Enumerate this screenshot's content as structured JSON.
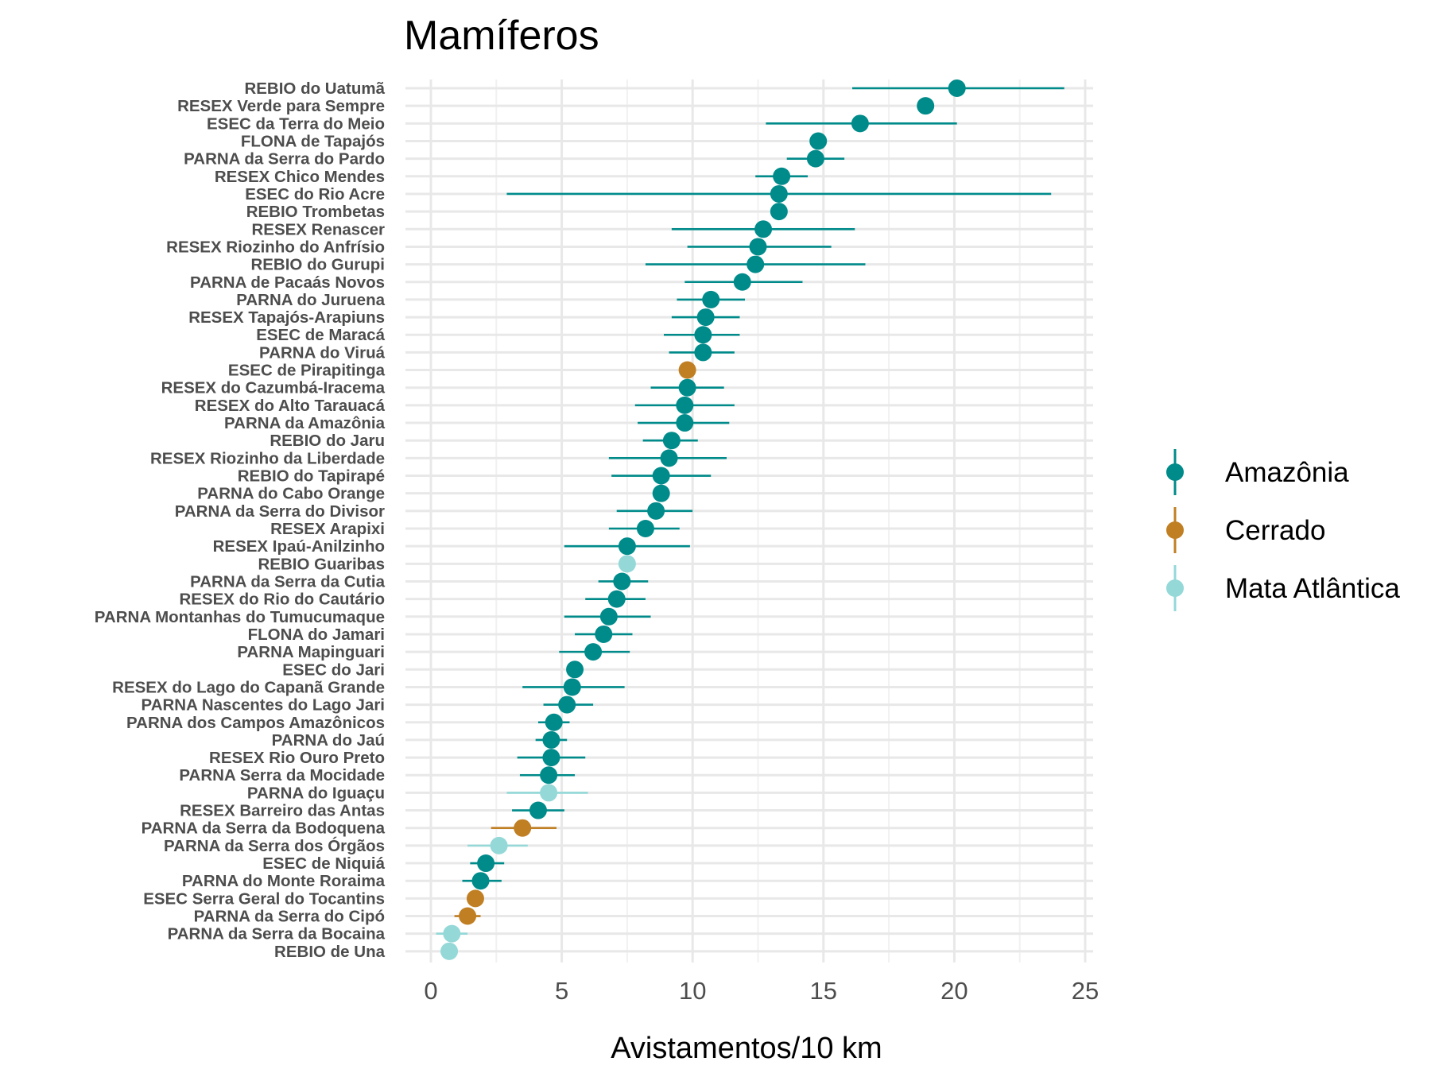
{
  "chart_data": {
    "type": "scatter",
    "subtype": "dot-with-error-bars",
    "title": "Mamíferos",
    "xlabel": "Avistamentos/10 km",
    "ylabel": "",
    "xlim": [
      0,
      25
    ],
    "xticks": [
      0,
      5,
      10,
      15,
      20,
      25
    ],
    "grid": true,
    "legend": {
      "position": "right",
      "entries": [
        {
          "name": "Amazônia",
          "color": "#008b8b"
        },
        {
          "name": "Cerrado",
          "color": "#c07f23"
        },
        {
          "name": "Mata Atlântica",
          "color": "#94d8d8"
        }
      ]
    },
    "points": [
      {
        "label": "REBIO do Uatumã",
        "biome": "Amazônia",
        "value": 20.1,
        "lower": 16.1,
        "upper": 24.2
      },
      {
        "label": "RESEX Verde para Sempre",
        "biome": "Amazônia",
        "value": 18.9,
        "lower": 18.9,
        "upper": 18.9
      },
      {
        "label": "ESEC da Terra do Meio",
        "biome": "Amazônia",
        "value": 16.4,
        "lower": 12.8,
        "upper": 20.1
      },
      {
        "label": "FLONA de Tapajós",
        "biome": "Amazônia",
        "value": 14.8,
        "lower": 14.8,
        "upper": 14.8
      },
      {
        "label": "PARNA da Serra do Pardo",
        "biome": "Amazônia",
        "value": 14.7,
        "lower": 13.6,
        "upper": 15.8
      },
      {
        "label": "RESEX Chico Mendes",
        "biome": "Amazônia",
        "value": 13.4,
        "lower": 12.4,
        "upper": 14.4
      },
      {
        "label": "ESEC do Rio Acre",
        "biome": "Amazônia",
        "value": 13.3,
        "lower": 2.9,
        "upper": 23.7
      },
      {
        "label": "REBIO Trombetas",
        "biome": "Amazônia",
        "value": 13.3,
        "lower": 13.3,
        "upper": 13.3
      },
      {
        "label": "RESEX Renascer",
        "biome": "Amazônia",
        "value": 12.7,
        "lower": 9.2,
        "upper": 16.2
      },
      {
        "label": "RESEX Riozinho do Anfrísio",
        "biome": "Amazônia",
        "value": 12.5,
        "lower": 9.8,
        "upper": 15.3
      },
      {
        "label": "REBIO do Gurupi",
        "biome": "Amazônia",
        "value": 12.4,
        "lower": 8.2,
        "upper": 16.6
      },
      {
        "label": "PARNA de Pacaás Novos",
        "biome": "Amazônia",
        "value": 11.9,
        "lower": 9.7,
        "upper": 14.2
      },
      {
        "label": "PARNA do Juruena",
        "biome": "Amazônia",
        "value": 10.7,
        "lower": 9.4,
        "upper": 12.0
      },
      {
        "label": "RESEX Tapajós-Arapiuns",
        "biome": "Amazônia",
        "value": 10.5,
        "lower": 9.2,
        "upper": 11.8
      },
      {
        "label": "ESEC de Maracá",
        "biome": "Amazônia",
        "value": 10.4,
        "lower": 8.9,
        "upper": 11.8
      },
      {
        "label": "PARNA do Viruá",
        "biome": "Amazônia",
        "value": 10.4,
        "lower": 9.1,
        "upper": 11.6
      },
      {
        "label": "ESEC de Pirapitinga",
        "biome": "Cerrado",
        "value": 9.8,
        "lower": 9.8,
        "upper": 9.8
      },
      {
        "label": "RESEX do Cazumbá-Iracema",
        "biome": "Amazônia",
        "value": 9.8,
        "lower": 8.4,
        "upper": 11.2
      },
      {
        "label": "RESEX do Alto Tarauacá",
        "biome": "Amazônia",
        "value": 9.7,
        "lower": 7.8,
        "upper": 11.6
      },
      {
        "label": "PARNA da Amazônia",
        "biome": "Amazônia",
        "value": 9.7,
        "lower": 7.9,
        "upper": 11.4
      },
      {
        "label": "REBIO do Jaru",
        "biome": "Amazônia",
        "value": 9.2,
        "lower": 8.1,
        "upper": 10.2
      },
      {
        "label": "RESEX Riozinho da Liberdade",
        "biome": "Amazônia",
        "value": 9.1,
        "lower": 6.8,
        "upper": 11.3
      },
      {
        "label": "REBIO do Tapirapé",
        "biome": "Amazônia",
        "value": 8.8,
        "lower": 6.9,
        "upper": 10.7
      },
      {
        "label": "PARNA do Cabo Orange",
        "biome": "Amazônia",
        "value": 8.8,
        "lower": 8.8,
        "upper": 8.8
      },
      {
        "label": "PARNA da Serra do Divisor",
        "biome": "Amazônia",
        "value": 8.6,
        "lower": 7.1,
        "upper": 10.0
      },
      {
        "label": "RESEX Arapixi",
        "biome": "Amazônia",
        "value": 8.2,
        "lower": 6.8,
        "upper": 9.5
      },
      {
        "label": "RESEX Ipaú-Anilzinho",
        "biome": "Amazônia",
        "value": 7.5,
        "lower": 5.1,
        "upper": 9.9
      },
      {
        "label": "REBIO Guaribas",
        "biome": "Mata Atlântica",
        "value": 7.5,
        "lower": 7.5,
        "upper": 7.5
      },
      {
        "label": "PARNA da Serra da Cutia",
        "biome": "Amazônia",
        "value": 7.3,
        "lower": 6.4,
        "upper": 8.3
      },
      {
        "label": "RESEX do Rio do Cautário",
        "biome": "Amazônia",
        "value": 7.1,
        "lower": 5.9,
        "upper": 8.2
      },
      {
        "label": "PARNA Montanhas do Tumucumaque",
        "biome": "Amazônia",
        "value": 6.8,
        "lower": 5.1,
        "upper": 8.4
      },
      {
        "label": "FLONA do Jamari",
        "biome": "Amazônia",
        "value": 6.6,
        "lower": 5.5,
        "upper": 7.7
      },
      {
        "label": "PARNA Mapinguari",
        "biome": "Amazônia",
        "value": 6.2,
        "lower": 4.9,
        "upper": 7.6
      },
      {
        "label": "ESEC do Jari",
        "biome": "Amazônia",
        "value": 5.5,
        "lower": 5.5,
        "upper": 5.5
      },
      {
        "label": "RESEX do Lago do Capanã Grande",
        "biome": "Amazônia",
        "value": 5.4,
        "lower": 3.5,
        "upper": 7.4
      },
      {
        "label": "PARNA Nascentes do Lago Jari",
        "biome": "Amazônia",
        "value": 5.2,
        "lower": 4.3,
        "upper": 6.2
      },
      {
        "label": "PARNA dos Campos Amazônicos",
        "biome": "Amazônia",
        "value": 4.7,
        "lower": 4.1,
        "upper": 5.3
      },
      {
        "label": "PARNA do Jaú",
        "biome": "Amazônia",
        "value": 4.6,
        "lower": 4.0,
        "upper": 5.2
      },
      {
        "label": "RESEX Rio Ouro Preto",
        "biome": "Amazônia",
        "value": 4.6,
        "lower": 3.3,
        "upper": 5.9
      },
      {
        "label": "PARNA Serra da Mocidade",
        "biome": "Amazônia",
        "value": 4.5,
        "lower": 3.4,
        "upper": 5.5
      },
      {
        "label": "PARNA do Iguaçu",
        "biome": "Mata Atlântica",
        "value": 4.5,
        "lower": 2.9,
        "upper": 6.0
      },
      {
        "label": "RESEX Barreiro das Antas",
        "biome": "Amazônia",
        "value": 4.1,
        "lower": 3.1,
        "upper": 5.1
      },
      {
        "label": "PARNA da Serra da Bodoquena",
        "biome": "Cerrado",
        "value": 3.5,
        "lower": 2.3,
        "upper": 4.8
      },
      {
        "label": "PARNA da Serra dos Órgãos",
        "biome": "Mata Atlântica",
        "value": 2.6,
        "lower": 1.4,
        "upper": 3.7
      },
      {
        "label": "ESEC de Niquiá",
        "biome": "Amazônia",
        "value": 2.1,
        "lower": 1.5,
        "upper": 2.8
      },
      {
        "label": "PARNA do Monte Roraima",
        "biome": "Amazônia",
        "value": 1.9,
        "lower": 1.2,
        "upper": 2.7
      },
      {
        "label": "ESEC Serra Geral do Tocantins",
        "biome": "Cerrado",
        "value": 1.7,
        "lower": 1.7,
        "upper": 1.7
      },
      {
        "label": "PARNA da Serra do Cipó",
        "biome": "Cerrado",
        "value": 1.4,
        "lower": 0.9,
        "upper": 1.9
      },
      {
        "label": "PARNA da Serra da Bocaina",
        "biome": "Mata Atlântica",
        "value": 0.8,
        "lower": 0.2,
        "upper": 1.4
      },
      {
        "label": "REBIO de Una",
        "biome": "Mata Atlântica",
        "value": 0.7,
        "lower": 0.7,
        "upper": 0.7
      }
    ]
  }
}
